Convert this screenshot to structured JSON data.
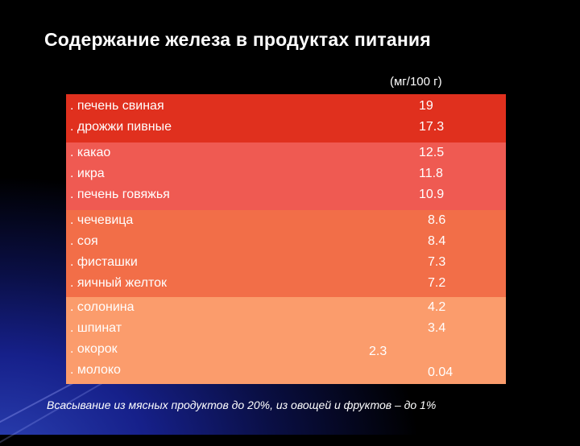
{
  "title": "Содержание железа в продуктах питания",
  "unit": "(мг/100 г)",
  "colors": {
    "band1": "#e0301e",
    "band2": "#ef5a52",
    "band3": "#f26e48",
    "band4": "#fb9c6c"
  },
  "groups": [
    {
      "items": [
        {
          "name": ". печень свиная",
          "value": "19"
        },
        {
          "name": ". дрожжи пивные",
          "value": "17.3"
        }
      ]
    },
    {
      "items": [
        {
          "name": ". какао",
          "value": "12.5"
        },
        {
          "name": ". икра",
          "value": "11.8"
        },
        {
          "name": ". печень говяжья",
          "value": "10.9"
        }
      ]
    },
    {
      "items": [
        {
          "name": ". чечевица",
          "value": "8.6"
        },
        {
          "name": ". соя",
          "value": "8.4"
        },
        {
          "name": ". фисташки",
          "value": "7.3"
        },
        {
          "name": ". яичный желток",
          "value": "7.2"
        }
      ]
    },
    {
      "items": [
        {
          "name": ". солонина",
          "value": "4.2"
        },
        {
          "name": ". шпинат",
          "value": "3.4"
        },
        {
          "name": ". окорок",
          "value": "2.3"
        },
        {
          "name": ". молоко",
          "value": "0.04"
        }
      ]
    }
  ],
  "footer": "Всасывание из мясных продуктов до 20%,  из овощей и фруктов – до 1%"
}
